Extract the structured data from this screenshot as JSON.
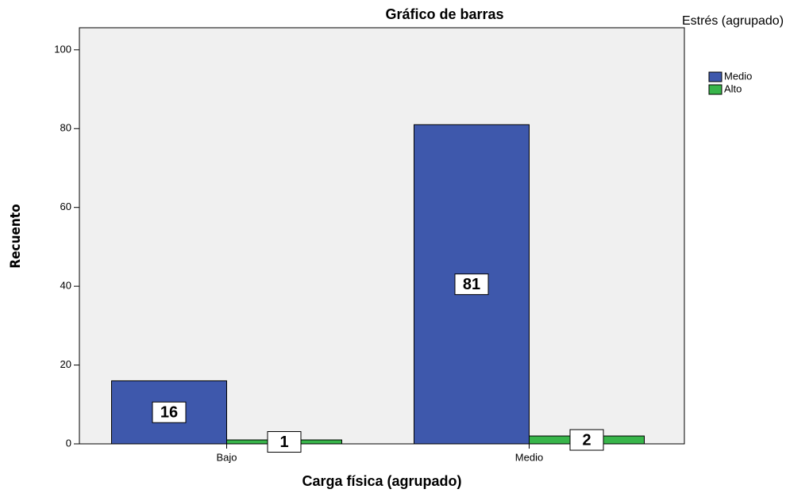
{
  "chart_data": {
    "type": "bar",
    "title": "Gráfico de barras",
    "x_label": "Carga física (agrupado)",
    "y_label": "Recuento",
    "legend_title": "Estrés (agrupado)",
    "legend_position": "right",
    "categories": [
      "Bajo",
      "Medio"
    ],
    "series": [
      {
        "name": "Medio",
        "color": "#3e58ac",
        "values": [
          16,
          81
        ]
      },
      {
        "name": "Alto",
        "color": "#38b54a",
        "values": [
          1,
          2
        ]
      }
    ],
    "ylim": [
      0,
      105.6
    ],
    "yticks": [
      0,
      20,
      40,
      60,
      80,
      100
    ],
    "grid": false
  }
}
